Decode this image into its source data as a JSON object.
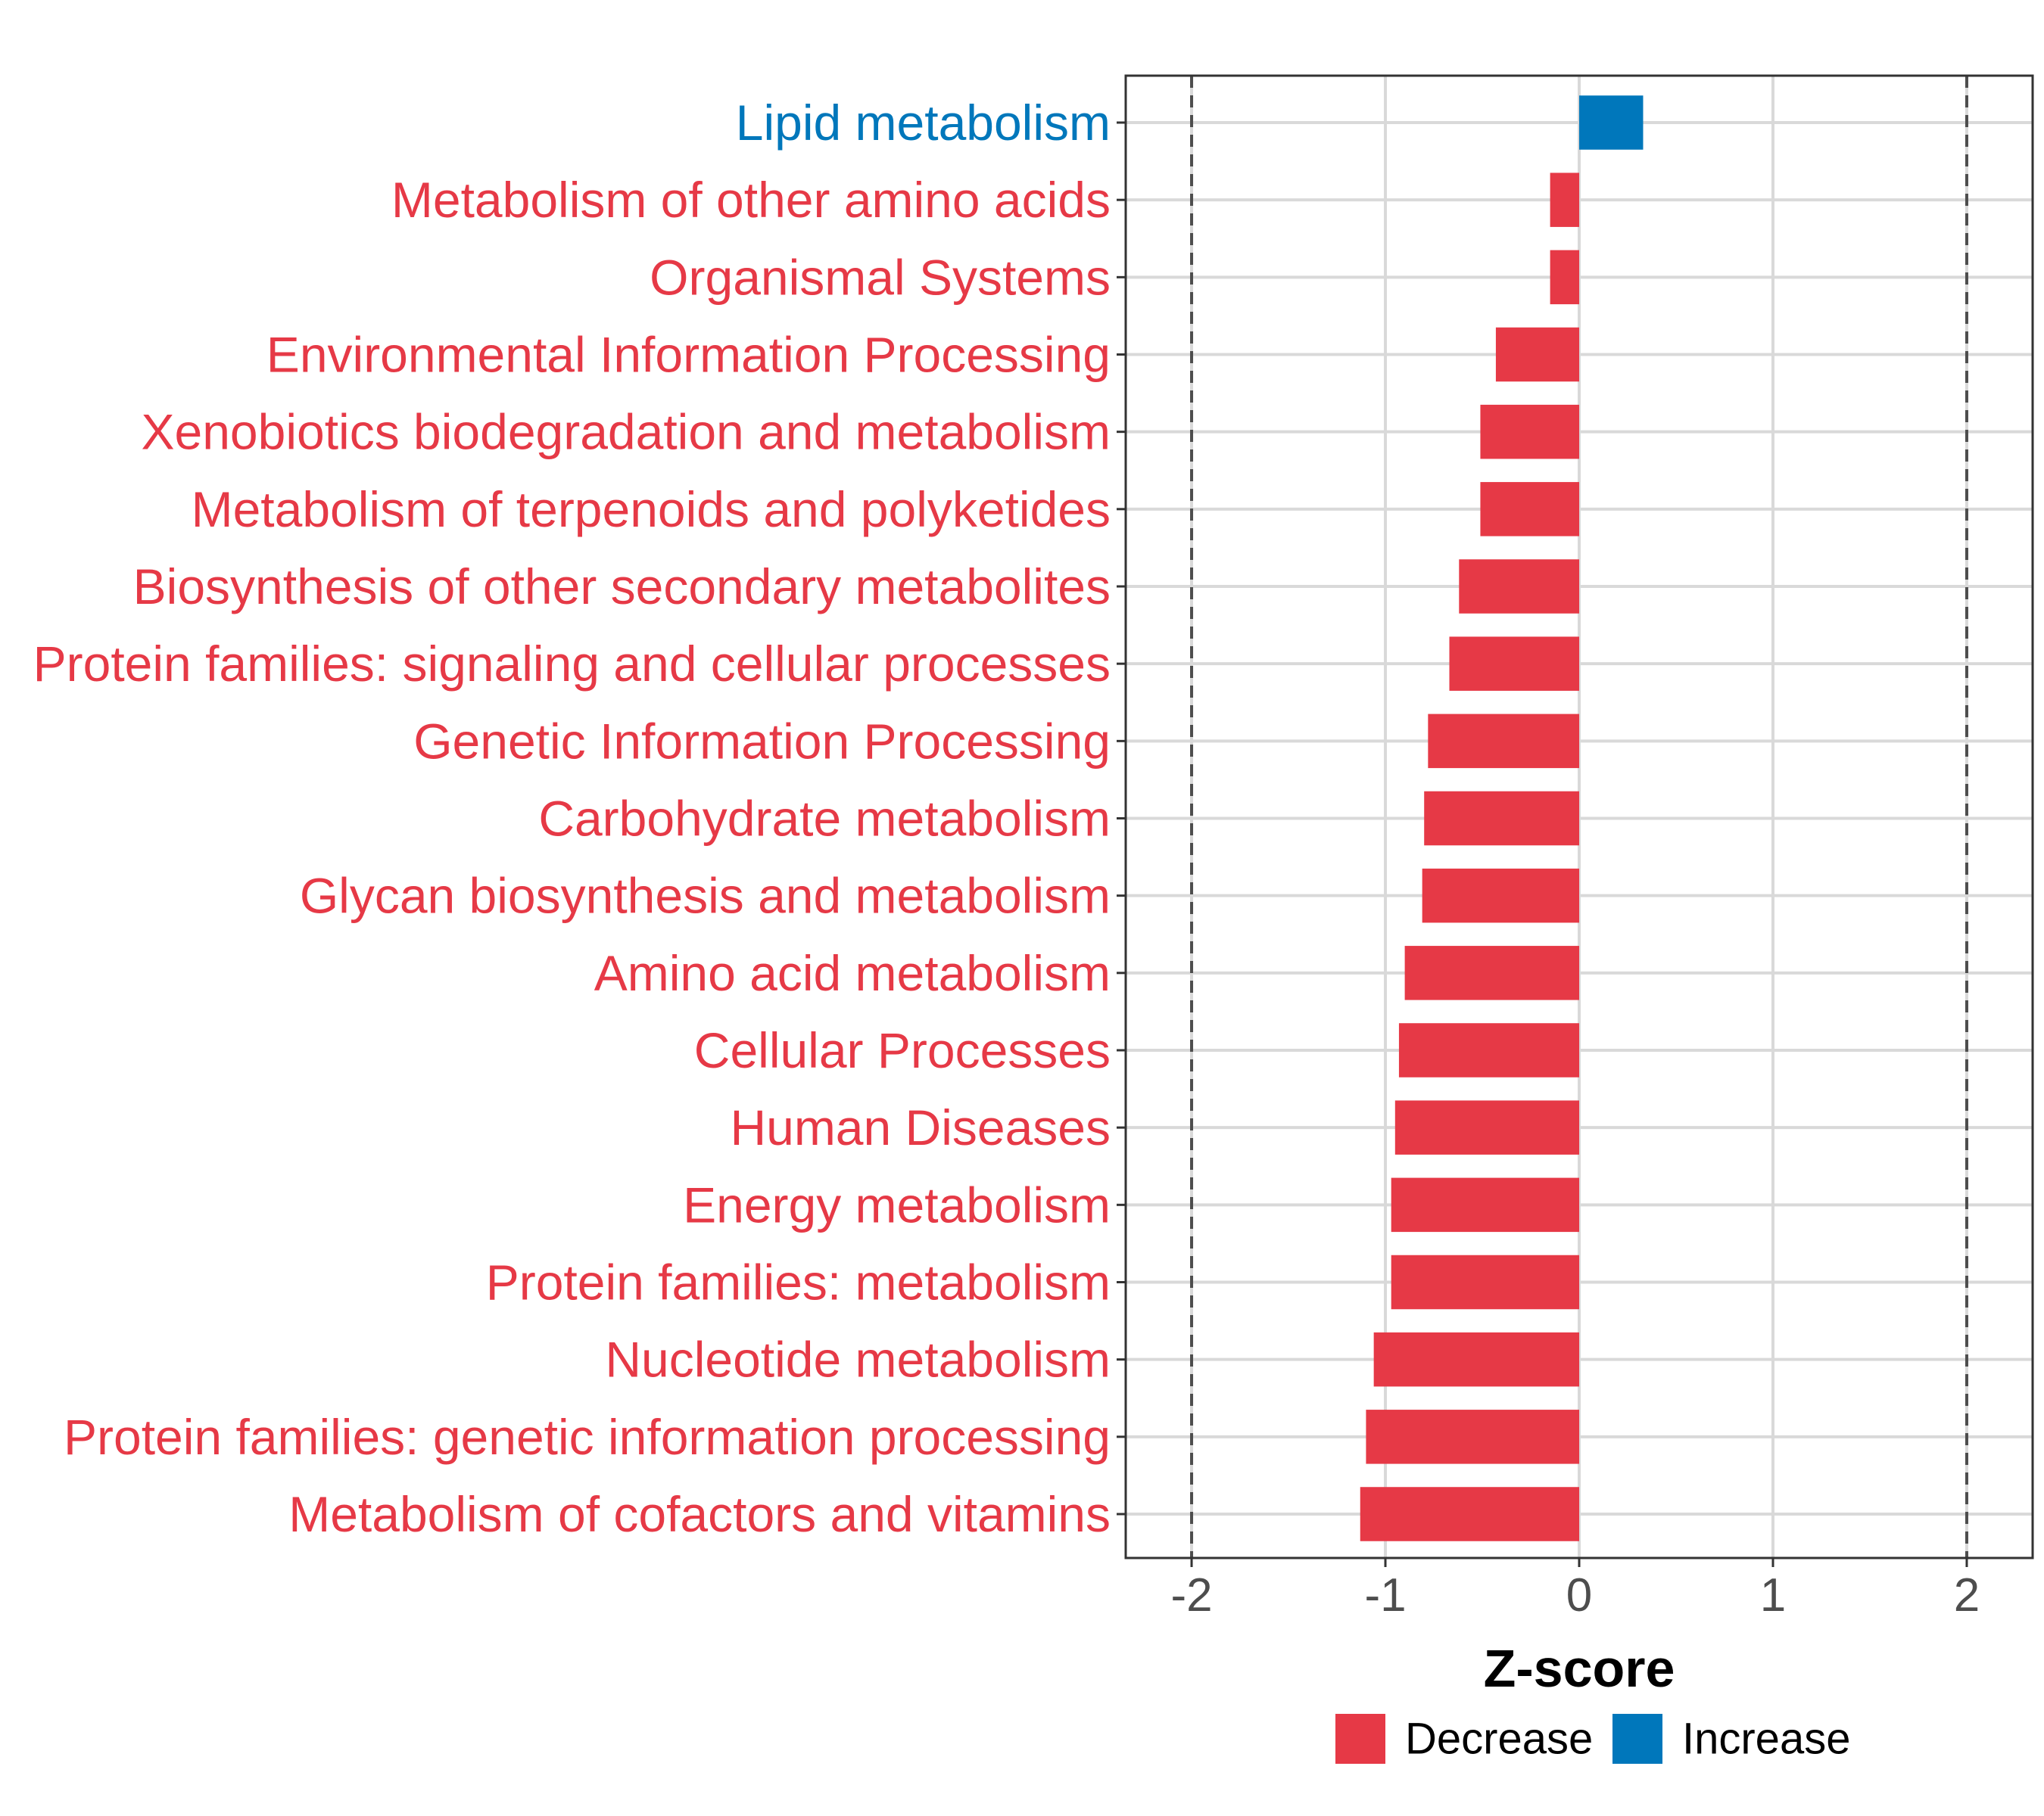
{
  "chart_data": {
    "type": "bar",
    "orientation": "horizontal",
    "xlabel": "Z-score",
    "xlim": [
      -2.34,
      2.34
    ],
    "xticks": [
      -2,
      -1,
      0,
      1,
      2
    ],
    "xtick_labels": [
      "-2",
      "-1",
      "0",
      "1",
      "2"
    ],
    "reference_lines": [
      -2,
      2
    ],
    "grid": true,
    "categories": [
      "Lipid metabolism",
      "Metabolism of other amino acids",
      "Organismal Systems",
      "Environmental Information Processing",
      "Xenobiotics biodegradation and metabolism",
      "Metabolism of terpenoids and polyketides",
      "Biosynthesis of other secondary metabolites",
      "Protein families: signaling and cellular processes",
      "Genetic Information Processing",
      "Carbohydrate metabolism",
      "Glycan biosynthesis and metabolism",
      "Amino acid metabolism",
      "Cellular Processes",
      "Human Diseases",
      "Energy metabolism",
      "Protein families: metabolism",
      "Nucleotide metabolism",
      "Protein families: genetic information processing",
      "Metabolism of cofactors and vitamins"
    ],
    "values": [
      0.33,
      -0.15,
      -0.15,
      -0.43,
      -0.51,
      -0.51,
      -0.62,
      -0.67,
      -0.78,
      -0.8,
      -0.81,
      -0.9,
      -0.93,
      -0.95,
      -0.97,
      -0.97,
      -1.06,
      -1.1,
      -1.13
    ],
    "groups": [
      "Increase",
      "Decrease",
      "Decrease",
      "Decrease",
      "Decrease",
      "Decrease",
      "Decrease",
      "Decrease",
      "Decrease",
      "Decrease",
      "Decrease",
      "Decrease",
      "Decrease",
      "Decrease",
      "Decrease",
      "Decrease",
      "Decrease",
      "Decrease",
      "Decrease"
    ],
    "legend": {
      "position": "bottom",
      "items": [
        {
          "label": "Decrease",
          "color": "#E63946"
        },
        {
          "label": "Increase",
          "color": "#0077BB"
        }
      ]
    },
    "colors": {
      "Decrease": "#E63946",
      "Increase": "#0077BB",
      "grid": "#d9d9d9",
      "reference_line": "#4d4d4d"
    }
  }
}
